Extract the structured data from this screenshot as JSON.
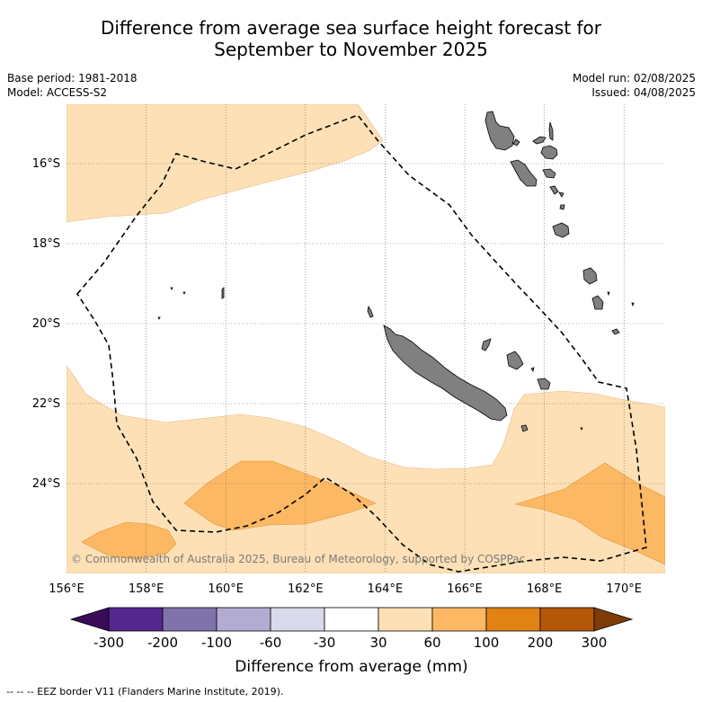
{
  "title_line1": "Difference from average sea surface height forecast for",
  "title_line2": "September to November 2025",
  "meta_left": [
    "Base period: 1981-2018",
    "Model: ACCESS-S2"
  ],
  "meta_right": [
    "Model run: 02/08/2025",
    "Issued: 04/08/2025"
  ],
  "lon_ticks": [
    {
      "value": 156,
      "label": "156°E"
    },
    {
      "value": 158,
      "label": "158°E"
    },
    {
      "value": 160,
      "label": "160°E"
    },
    {
      "value": 162,
      "label": "162°E"
    },
    {
      "value": 164,
      "label": "164°E"
    },
    {
      "value": 166,
      "label": "166°E"
    },
    {
      "value": 168,
      "label": "168°E"
    },
    {
      "value": 170,
      "label": "170°E"
    }
  ],
  "lat_ticks": [
    {
      "value": -16,
      "label": "16°S"
    },
    {
      "value": -18,
      "label": "18°S"
    },
    {
      "value": -20,
      "label": "20°S"
    },
    {
      "value": -22,
      "label": "22°S"
    },
    {
      "value": -24,
      "label": "24°S"
    }
  ],
  "copyright": "© Commonwealth of Australia 2025, Bureau of Meteorology, supported by COSPPac",
  "colorbar": {
    "title": "Difference from average (mm)",
    "bins": [
      {
        "color": "#3a0b59",
        "label": "-300"
      },
      {
        "color": "#54278f",
        "label": "-200"
      },
      {
        "color": "#8073ac",
        "label": "-100"
      },
      {
        "color": "#b2abd2",
        "label": "-60"
      },
      {
        "color": "#d8daeb",
        "label": "-30"
      },
      {
        "color": "#ffffff",
        "label": "30"
      },
      {
        "color": "#fee0b6",
        "label": "60"
      },
      {
        "color": "#fdb863",
        "label": "100"
      },
      {
        "color": "#e08214",
        "label": "200"
      },
      {
        "color": "#b35806",
        "label": "300"
      },
      {
        "color": "#7f3b08",
        "label": ""
      }
    ]
  },
  "colors": {
    "light_orange": "#fee0b6",
    "mid_orange": "#fdb863",
    "land": "#808080",
    "grid": "#666666"
  },
  "footer": "--  --  -- EEZ border V11 (Flanders Marine Institute, 2019)."
}
